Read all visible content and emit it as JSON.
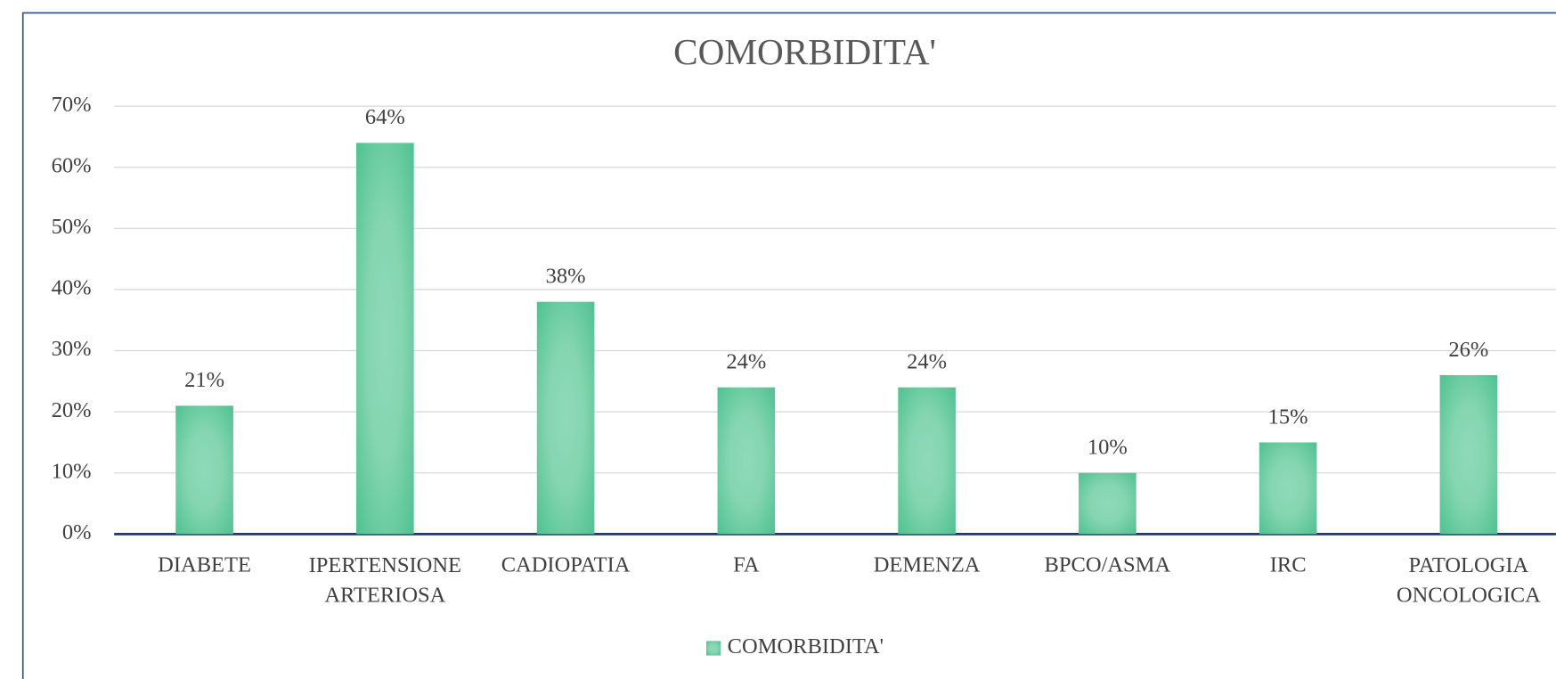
{
  "chart_data": {
    "type": "bar",
    "title": "COMORBIDITA'",
    "categories": [
      "DIABETE",
      "IPERTENSIONE ARTERIOSA",
      "CADIOPATIA",
      "FA",
      "DEMENZA",
      "BPCO/ASMA",
      "IRC",
      "PATOLOGIA ONCOLOGICA"
    ],
    "series": [
      {
        "name": "COMORBIDITA'",
        "color": "#52c493",
        "values": [
          21,
          64,
          38,
          24,
          24,
          10,
          15,
          26
        ],
        "value_labels": [
          "21%",
          "64%",
          "38%",
          "24%",
          "24%",
          "10%",
          "15%",
          "26%"
        ]
      }
    ],
    "ylim": [
      0,
      70
    ],
    "yticks": [
      {
        "value": 0,
        "label": "0%"
      },
      {
        "value": 10,
        "label": "10%"
      },
      {
        "value": 20,
        "label": "20%"
      },
      {
        "value": 30,
        "label": "30%"
      },
      {
        "value": 40,
        "label": "40%"
      },
      {
        "value": 50,
        "label": "50%"
      },
      {
        "value": 60,
        "label": "60%"
      },
      {
        "value": 70,
        "label": "70%"
      }
    ],
    "grid": true,
    "legend": "bottom"
  }
}
